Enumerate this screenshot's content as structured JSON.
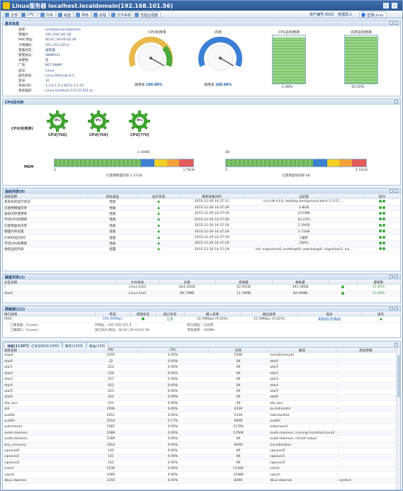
{
  "window": {
    "title": "Linux服务器 localhost.localdomain(192.168.101.56)"
  },
  "toolbar": {
    "buttons": [
      "全部",
      "CPU",
      "内存",
      "磁盘",
      "网络",
      "进程",
      "文件系统",
      "性能监视器"
    ],
    "host_label": "资产编号:3020",
    "manage_label": "管理员:1",
    "user": "登录Linux"
  },
  "basic": {
    "title": "基本信息",
    "rows": [
      {
        "k": "名称:",
        "v": "localhost.localdomain"
      },
      {
        "k": "管理IP:",
        "v": "192.168.101.56"
      },
      {
        "k": "MAC地址:",
        "v": "00:0C:29:A0:02:38"
      },
      {
        "k": "子网掩码:",
        "v": "255.255.255.0"
      },
      {
        "k": "管理状态:",
        "v": "被管理"
      },
      {
        "k": "管理协议:",
        "v": "SNMPv2c"
      },
      {
        "k": "关键性:",
        "v": "是"
      },
      {
        "k": "厂商:",
        "v": "NET-SNMP"
      },
      {
        "k": "型号:",
        "v": "Linux"
      },
      {
        "k": "操作系统:",
        "v": "Linux Red Hat 6.5"
      },
      {
        "k": "型号:",
        "v": "32"
      },
      {
        "k": "系统OID:",
        "v": "1.3.6.1.4.1.8072.3.2.10"
      },
      {
        "k": "系统描述:",
        "v": "Linux localhost 2.6.32-431.el..."
      }
    ],
    "cpu_gauge": {
      "title": "CPU利用率",
      "label": "使用率",
      "value": "100.00%",
      "pct": 100
    },
    "mem_gauge": {
      "title": "内存",
      "label": "使用率",
      "value": "100.00%",
      "pct": 100
    },
    "vbar1": {
      "title": "CPU总利用率",
      "value": "1.00%",
      "pct": 96
    },
    "vbar2": {
      "title": "内存总利用率",
      "value": "33.33%",
      "pct": 97
    }
  },
  "cpu": {
    "title": "CPU及内存",
    "row_label": "CPU(利用率)",
    "gears": [
      {
        "name": "CPU[768]",
        "value": "0%"
      },
      {
        "name": "CPU[769]",
        "value": "0%"
      },
      {
        "name": "CPU[770]",
        "value": "0%"
      }
    ],
    "mem_label": "MEM",
    "bar1": {
      "marker": "2.46MB",
      "scale_min": "0",
      "scale_max": "3.78GB",
      "caption": "已使用物理内存:2.37GB"
    },
    "bar2": {
      "marker": "0B",
      "scale_min": "0",
      "scale_max": "4.16GB",
      "caption": "已使用虚拟内存:0B"
    }
  },
  "indicators": {
    "title": "指标列表(9)",
    "columns": [
      "指标名称",
      "指标类型",
      "运行状态",
      "最新采集时间",
      "当前值",
      "操作"
    ],
    "rows": [
      [
        "系统总体运行状况",
        "性能",
        "ok",
        "2015-12-29 14:37:31",
        "cn:0 dt:4 t:0, desktop-background-bash 2-3-57, ...",
        ""
      ],
      [
        "已使用物理内存",
        "性能",
        "ok",
        "2015-12-29 14:37:29",
        "3.8GB",
        ""
      ],
      [
        "虚拟内存使用率",
        "性能",
        "ok",
        "2015-12-29 14:37:29",
        "4.91MB",
        ""
      ],
      [
        "平均CPU利用率",
        "性能",
        "ok",
        "2015-12-29 14:37:29",
        "32.22%",
        ""
      ],
      [
        "已使用虚拟内存",
        "性能",
        "ok",
        "2015-12-29 14:37:29",
        "2.39GB",
        ""
      ],
      [
        "物理内存总量",
        "性能",
        "ok",
        "2015-12-29 14:37:29",
        "3.71GB",
        ""
      ],
      [
        "ICMP响应时间",
        "性能",
        "ok",
        "2015-12-29 14:37:29",
        "2毫秒",
        ""
      ],
      [
        "平均CPU利用率",
        "性能",
        "ok",
        "2015-12-29 14:37:29",
        "100%",
        ""
      ],
      [
        "进程监控列表",
        "配置",
        "ok",
        "2015-12-29 14:37:29",
        "init, migration/0, ksoftirqd/0, watchdog/0, migration/1, ksi...",
        ""
      ]
    ]
  },
  "disks": {
    "title": "磁盘列表(2)",
    "columns": [
      "分区名称",
      "文件系统",
      "总量",
      "使用量",
      "剩余量",
      "",
      "使用率"
    ],
    "rows": [
      [
        "/",
        "Linux Ext3",
        "444.32GB",
        "52.65GB",
        "391.39GB",
        "",
        "11.85%"
      ],
      [
        "/boot",
        "Linux Ext3",
        "96.73MB",
        "11.76MB",
        "84.96MB",
        "",
        "11.94%"
      ]
    ]
  },
  "network": {
    "title": "网络接口(1)",
    "columns": [
      "接口名称",
      "带宽",
      "管理状态",
      "接口状态",
      "输入速率",
      "输出速率",
      "描述",
      "操作"
    ],
    "row": [
      "eth0",
      "100.00Mbps",
      "",
      "正常",
      "22.59Kbps (0.02%)",
      "21.59Kbps (0.02%)",
      "获取接口的数据",
      ""
    ],
    "detail": {
      "vendor": "上联设备：Huawei",
      "port": "上联端口：Huawei",
      "ip": "IP地址：192.168.101.4",
      "mac": "接口MAC地址：00:0C:29:A0:02:38",
      "type": "接口类型：以太网",
      "status": "带宽速率：100Mb"
    }
  },
  "process": {
    "tabs": [
      "进程(11307)",
      "已安装软件(1900)",
      "服务(1300)",
      "路由(156)"
    ],
    "columns": [
      "进程名称",
      "PID",
      "CPU",
      "内存",
      "路径",
      "启动参数"
    ],
    "rows": [
      [
        "acpid",
        "2255",
        "0.00%",
        "520K",
        "/usr/sbin/acpid",
        "-"
      ],
      [
        "ata/0",
        "32",
        "0.00%",
        "0K",
        "ata/0",
        "-"
      ],
      [
        "ata/1",
        "224",
        "0.00%",
        "0K",
        "ata/1",
        "-"
      ],
      [
        "ata/2",
        "226",
        "0.00%",
        "0K",
        "ata/2",
        "-"
      ],
      [
        "ata/3",
        "227",
        "0.00%",
        "0K",
        "ata/3",
        "-"
      ],
      [
        "ata/4",
        "422",
        "0.00%",
        "0K",
        "ata/4",
        "-"
      ],
      [
        "ata/5",
        "423",
        "0.00%",
        "0K",
        "ata/5",
        "-"
      ],
      [
        "ata/6",
        "424",
        "0.00%",
        "0K",
        "ata/6",
        "-"
      ],
      [
        "ata_aux",
        "431",
        "0.00%",
        "0K",
        "ata_aux",
        "-"
      ],
      [
        "atd",
        "2596",
        "0.00%",
        "432K",
        "/usr/sbin/atd",
        "-"
      ],
      [
        "auditd",
        "2011",
        "0.00%",
        "512K",
        "/sbin/auditd",
        "-"
      ],
      [
        "auditd",
        "2014",
        "0.17%",
        "660K",
        "auditd",
        "-"
      ],
      [
        "automount",
        "2587",
        "0.00%",
        "1176K",
        "automount",
        "-"
      ],
      [
        "avahi-daemon",
        "2388",
        "0.00%",
        "1256K",
        "avahi-daemon: running [localhost.local]",
        "-"
      ],
      [
        "avahi-daemon",
        "2389",
        "0.00%",
        "0K",
        "avahi-daemon: chroot helper",
        "-"
      ],
      [
        "bnx_recovery",
        "1914",
        "0.00%",
        "804K",
        "/usr/sbin/bnx",
        "-"
      ],
      [
        "cqueue/0",
        "140",
        "0.00%",
        "0K",
        "cqueue/0",
        "-"
      ],
      [
        "cqueue/1",
        "141",
        "0.00%",
        "0K",
        "cqueue/1",
        "-"
      ],
      [
        "cqueue/2",
        "142",
        "0.00%",
        "0K",
        "cqueue/2",
        "-"
      ],
      [
        "crond",
        "2538",
        "0.00%",
        "1116K",
        "crond",
        "-"
      ],
      [
        "cupsd",
        "2460",
        "0.00%",
        "2188K",
        "cupsd",
        "-"
      ],
      [
        "dbus-daemon",
        "2355",
        "0.00%",
        "840K",
        "dbus-daemon",
        "--system"
      ]
    ]
  }
}
